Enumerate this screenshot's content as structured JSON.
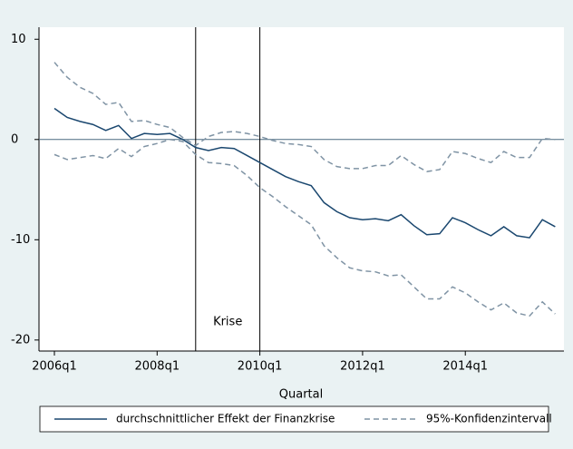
{
  "chart_data": {
    "type": "line",
    "x_label": "Quartal",
    "x": [
      2006,
      2006.25,
      2006.5,
      2006.75,
      2007,
      2007.25,
      2007.5,
      2007.75,
      2008,
      2008.25,
      2008.5,
      2008.75,
      2009,
      2009.25,
      2009.5,
      2009.75,
      2010,
      2010.25,
      2010.5,
      2010.75,
      2011,
      2011.25,
      2011.5,
      2011.75,
      2012,
      2012.25,
      2012.5,
      2012.75,
      2013,
      2013.25,
      2013.5,
      2013.75,
      2014,
      2014.25,
      2014.5,
      2014.75,
      2015,
      2015.25,
      2015.5,
      2015.75
    ],
    "series": [
      {
        "name": "durchschnittlicher Effekt der Finanzkrise",
        "color": "#1a476f",
        "dashed": false,
        "values": [
          3.1,
          2.2,
          1.8,
          1.5,
          0.9,
          1.4,
          0.1,
          0.6,
          0.5,
          0.6,
          0.0,
          -0.8,
          -1.1,
          -0.8,
          -0.9,
          -1.6,
          -2.3,
          -3.0,
          -3.7,
          -4.2,
          -4.6,
          -6.3,
          -7.2,
          -7.8,
          -8.0,
          -7.9,
          -8.1,
          -7.5,
          -8.6,
          -9.5,
          -9.4,
          -7.8,
          -8.3,
          -9.0,
          -9.6,
          -8.7,
          -9.6,
          -9.8,
          -8.0,
          -8.7
        ]
      },
      {
        "name": "95%-Konfidenzintervall",
        "color": "#7f93a4",
        "dashed": true,
        "values": [
          7.7,
          6.2,
          5.2,
          4.6,
          3.5,
          3.7,
          1.8,
          1.9,
          1.5,
          1.2,
          0.2,
          -0.6,
          0.3,
          0.7,
          0.8,
          0.6,
          0.3,
          -0.1,
          -0.4,
          -0.5,
          -0.7,
          -2.0,
          -2.7,
          -2.9,
          -2.9,
          -2.6,
          -2.6,
          -1.6,
          -2.5,
          -3.2,
          -3.0,
          -1.2,
          -1.4,
          -1.9,
          -2.3,
          -1.2,
          -1.8,
          -1.8,
          0.1,
          0.0
        ],
        "lower": [
          -1.5,
          -2.0,
          -1.8,
          -1.6,
          -1.9,
          -0.9,
          -1.7,
          -0.7,
          -0.4,
          0.0,
          -0.2,
          -1.5,
          -2.3,
          -2.4,
          -2.6,
          -3.6,
          -4.8,
          -5.7,
          -6.7,
          -7.6,
          -8.5,
          -10.6,
          -11.8,
          -12.8,
          -13.1,
          -13.2,
          -13.6,
          -13.5,
          -14.7,
          -15.9,
          -15.9,
          -14.7,
          -15.3,
          -16.2,
          -17.0,
          -16.3,
          -17.3,
          -17.6,
          -16.2,
          -17.4
        ]
      }
    ],
    "xlim": [
      2005.7,
      2015.92
    ],
    "ylim": [
      -21.1,
      11.2
    ],
    "xticks": [
      {
        "value": 2006,
        "label": "2006q1"
      },
      {
        "value": 2008,
        "label": "2008q1"
      },
      {
        "value": 2010,
        "label": "2010q1"
      },
      {
        "value": 2012,
        "label": "2012q1"
      },
      {
        "value": 2014,
        "label": "2014q1"
      }
    ],
    "yticks": [
      -20,
      -10,
      0,
      10
    ],
    "hline": 0,
    "vlines": [
      2008.75,
      2010
    ],
    "annotation": "Krise"
  }
}
